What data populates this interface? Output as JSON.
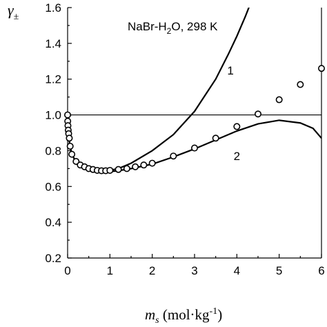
{
  "chart_data": {
    "type": "scatter",
    "title": "",
    "annotation": {
      "prefix": "NaBr-H",
      "sub": "2",
      "suffix": "O, 298 K"
    },
    "ylabel": {
      "symbol": "γ",
      "sub": "±"
    },
    "xlabel": {
      "var": "m",
      "var_sub": "s",
      "units_prefix": " (mol·kg",
      "units_sup": "-1",
      "units_suffix": ")"
    },
    "xlim": [
      0,
      6
    ],
    "ylim": [
      0.2,
      1.6
    ],
    "xticks": [
      0,
      1,
      2,
      3,
      4,
      5,
      6
    ],
    "yticks": [
      0.2,
      0.4,
      0.6,
      0.8,
      1.0,
      1.2,
      1.4,
      1.6
    ],
    "xtick_labels": [
      "0",
      "1",
      "2",
      "3",
      "4",
      "5",
      "6"
    ],
    "ytick_labels": [
      "0.2",
      "0.4",
      "0.6",
      "0.8",
      "1.0",
      "1.2",
      "1.4",
      "1.6"
    ],
    "reference_line": {
      "y": 1.0
    },
    "grid": false,
    "series": [
      {
        "kind": "scatter",
        "marker": "open-circle",
        "x": [
          0.0,
          0.003,
          0.008,
          0.015,
          0.025,
          0.04,
          0.06,
          0.1,
          0.2,
          0.3,
          0.4,
          0.5,
          0.6,
          0.7,
          0.8,
          0.9,
          1.0,
          1.2,
          1.4,
          1.6,
          1.8,
          2.0,
          2.5,
          3.0,
          3.5,
          4.0,
          4.5,
          5.0,
          5.5,
          6.0
        ],
        "y": [
          1.0,
          0.965,
          0.94,
          0.915,
          0.895,
          0.87,
          0.825,
          0.78,
          0.74,
          0.72,
          0.71,
          0.7,
          0.695,
          0.69,
          0.688,
          0.688,
          0.69,
          0.695,
          0.7,
          0.71,
          0.72,
          0.73,
          0.77,
          0.815,
          0.87,
          0.935,
          1.005,
          1.085,
          1.17,
          1.26
        ]
      },
      {
        "name": "1",
        "kind": "line",
        "x": [
          0.0,
          0.01,
          0.03,
          0.06,
          0.1,
          0.2,
          0.3,
          0.4,
          0.5,
          0.7,
          0.9,
          1.0,
          1.2,
          1.5,
          2.0,
          2.5,
          3.0,
          3.5,
          3.8,
          4.0,
          4.2,
          4.3
        ],
        "y": [
          1.0,
          0.93,
          0.87,
          0.82,
          0.785,
          0.73,
          0.71,
          0.7,
          0.692,
          0.685,
          0.685,
          0.69,
          0.7,
          0.73,
          0.8,
          0.89,
          1.02,
          1.2,
          1.34,
          1.44,
          1.55,
          1.61
        ]
      },
      {
        "name": "2",
        "kind": "line",
        "x": [
          0.0,
          0.01,
          0.03,
          0.06,
          0.1,
          0.2,
          0.3,
          0.4,
          0.5,
          0.7,
          0.9,
          1.0,
          1.2,
          1.5,
          2.0,
          2.5,
          3.0,
          3.5,
          4.0,
          4.5,
          5.0,
          5.5,
          5.8,
          6.0
        ],
        "y": [
          1.0,
          0.93,
          0.87,
          0.82,
          0.785,
          0.73,
          0.71,
          0.7,
          0.692,
          0.685,
          0.682,
          0.683,
          0.688,
          0.7,
          0.725,
          0.765,
          0.81,
          0.86,
          0.91,
          0.95,
          0.97,
          0.955,
          0.925,
          0.87
        ]
      }
    ],
    "curve_labels": [
      {
        "text": "1",
        "x": 3.85,
        "y": 1.25
      },
      {
        "text": "2",
        "x": 4.0,
        "y": 0.77
      }
    ]
  }
}
